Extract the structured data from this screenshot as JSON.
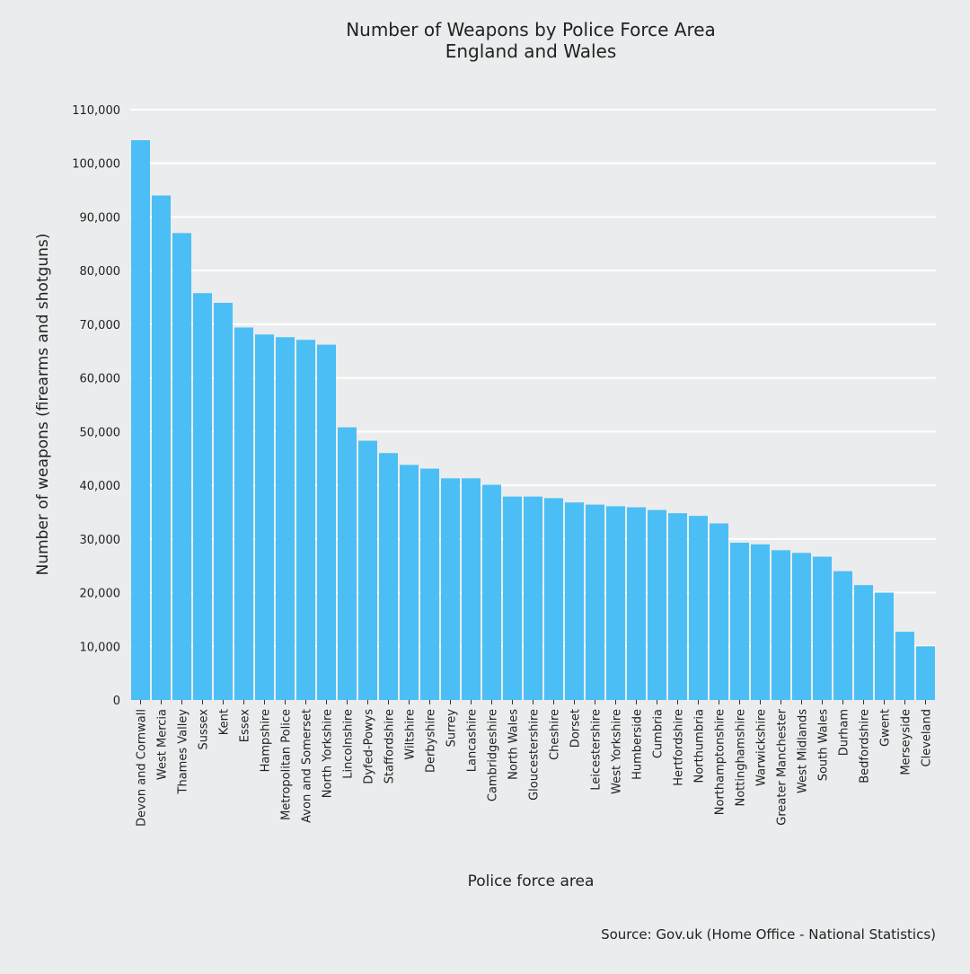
{
  "chart_data": {
    "type": "bar",
    "title": "Number of Weapons by Police Force Area",
    "subtitle": "England and Wales",
    "xlabel": "Police force area",
    "ylabel": "Number of weapons (firearms and shotguns)",
    "source": "Source: Gov.uk (Home Office - National Statistics)",
    "ylim": [
      0,
      110000
    ],
    "yticks": [
      0,
      10000,
      20000,
      30000,
      40000,
      50000,
      60000,
      70000,
      80000,
      90000,
      100000,
      110000
    ],
    "ytick_labels": [
      "0",
      "10,000",
      "20,000",
      "30,000",
      "40,000",
      "50,000",
      "60,000",
      "70,000",
      "80,000",
      "90,000",
      "100,000",
      "110,000"
    ],
    "grid": true,
    "bar_color": "#4bbff5",
    "background": "#ebeced",
    "categories": [
      "Devon and Cornwall",
      "West Mercia",
      "Thames Valley",
      "Sussex",
      "Kent",
      "Essex",
      "Hampshire",
      "Metropolitan Police",
      "Avon and Somerset",
      "North Yorkshire",
      "Lincolnshire",
      "Dyfed-Powys",
      "Staffordshire",
      "Wiltshire",
      "Derbyshire",
      "Surrey",
      "Lancashire",
      "Cambridgeshire",
      "North Wales",
      "Gloucestershire",
      "Cheshire",
      "Dorset",
      "Leicestershire",
      "West Yorkshire",
      "Humberside",
      "Cumbria",
      "Hertfordshire",
      "Northumbria",
      "Northamptonshire",
      "Nottinghamshire",
      "Warwickshire",
      "Greater Manchester",
      "West Midlands",
      "South Wales",
      "Durham",
      "Bedfordshire",
      "Gwent",
      "Merseyside",
      "Cleveland"
    ],
    "values": [
      104300,
      94000,
      87000,
      75800,
      74000,
      69400,
      68100,
      67600,
      67100,
      66200,
      50800,
      48300,
      46000,
      43800,
      43100,
      41300,
      41300,
      40100,
      37900,
      37900,
      37600,
      36800,
      36400,
      36100,
      35900,
      35400,
      34800,
      34300,
      32900,
      29300,
      29000,
      27900,
      27400,
      26700,
      24000,
      21400,
      20000,
      12700,
      10000
    ]
  }
}
